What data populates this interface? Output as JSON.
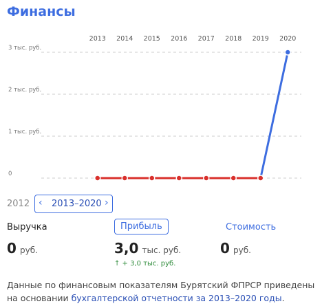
{
  "header": {
    "title": "Финансы"
  },
  "chart_data": {
    "type": "line",
    "categories": [
      "2013",
      "2014",
      "2015",
      "2016",
      "2017",
      "2018",
      "2019",
      "2020"
    ],
    "series": [
      {
        "color": "#3d6de0",
        "values": [
          0,
          0,
          0,
          0,
          0,
          0,
          0,
          3
        ]
      }
    ],
    "zero_color": "#d9302c",
    "ylim": [
      0,
      3
    ],
    "yticks": [
      0,
      {
        "value": 1,
        "label": "1 тыс. руб."
      },
      {
        "value": 2,
        "label": "2 тыс. руб."
      },
      {
        "value": 3,
        "label": "3 тыс. руб."
      }
    ],
    "grid": true
  },
  "period": {
    "previous": "2012",
    "current": "2013–2020"
  },
  "metrics": [
    {
      "label": "Выручка",
      "value": "0",
      "unit": "руб."
    },
    {
      "label": "Прибыль",
      "value": "3,0",
      "unit": "тыс. руб.",
      "change": "↑ + 3,0 тыс. руб."
    },
    {
      "label": "Стоимость",
      "value": "0",
      "unit": "руб."
    }
  ],
  "footer": {
    "text": "Данные по финансовым показателям Бурятский ФПРСР приведены на основании ",
    "link": "бухгалтерской отчетности за 2013–2020 годы",
    "end": "."
  }
}
